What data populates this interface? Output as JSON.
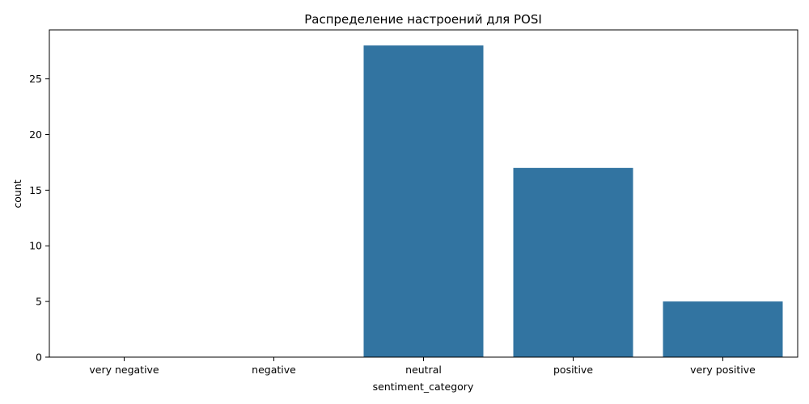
{
  "chart_data": {
    "type": "bar",
    "title": "Распределение настроений для POSI",
    "xlabel": "sentiment_category",
    "ylabel": "count",
    "categories": [
      "very negative",
      "negative",
      "neutral",
      "positive",
      "very positive"
    ],
    "values": [
      0,
      0,
      28,
      17,
      5
    ],
    "ylim": [
      0,
      29.4
    ],
    "yticks": [
      0,
      5,
      10,
      15,
      20,
      25
    ],
    "bar_color": "#3274a1",
    "grid": false,
    "legend": "none"
  }
}
